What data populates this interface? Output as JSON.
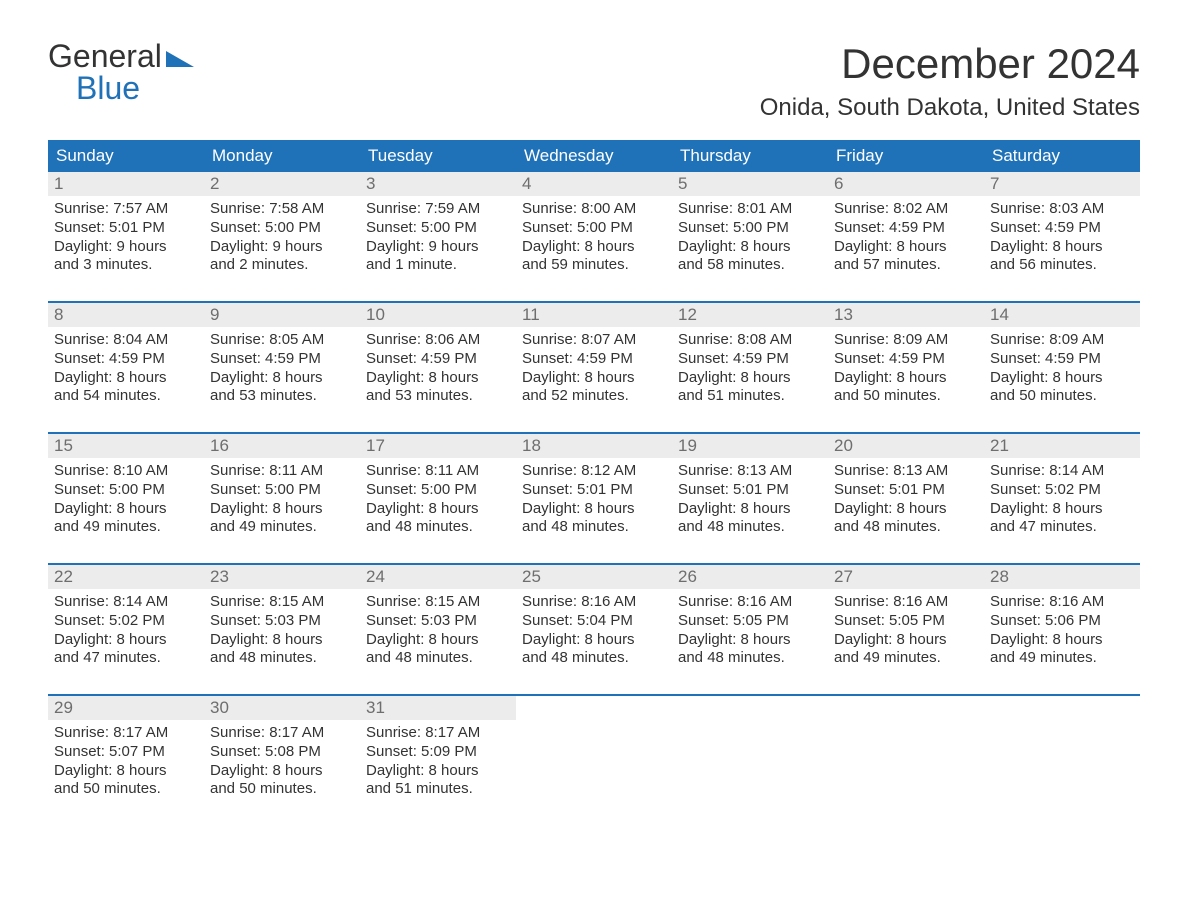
{
  "logo": {
    "text_general": "General",
    "text_blue": "Blue",
    "brand_color": "#2072b8"
  },
  "title": "December 2024",
  "location": "Onida, South Dakota, United States",
  "day_headers": [
    "Sunday",
    "Monday",
    "Tuesday",
    "Wednesday",
    "Thursday",
    "Friday",
    "Saturday"
  ],
  "colors": {
    "header_bg": "#2072b8",
    "header_text": "#ffffff",
    "daynum_bg": "#ececec",
    "daynum_text": "#6e6e6e",
    "body_text": "#333333",
    "week_border": "#2072b8",
    "page_bg": "#ffffff"
  },
  "typography": {
    "title_fontsize": 42,
    "location_fontsize": 24,
    "dayheader_fontsize": 17,
    "daynum_fontsize": 17,
    "body_fontsize": 15,
    "font_family": "Arial"
  },
  "weeks": [
    [
      {
        "num": "1",
        "sunrise": "Sunrise: 7:57 AM",
        "sunset": "Sunset: 5:01 PM",
        "daylight1": "Daylight: 9 hours",
        "daylight2": "and 3 minutes."
      },
      {
        "num": "2",
        "sunrise": "Sunrise: 7:58 AM",
        "sunset": "Sunset: 5:00 PM",
        "daylight1": "Daylight: 9 hours",
        "daylight2": "and 2 minutes."
      },
      {
        "num": "3",
        "sunrise": "Sunrise: 7:59 AM",
        "sunset": "Sunset: 5:00 PM",
        "daylight1": "Daylight: 9 hours",
        "daylight2": "and 1 minute."
      },
      {
        "num": "4",
        "sunrise": "Sunrise: 8:00 AM",
        "sunset": "Sunset: 5:00 PM",
        "daylight1": "Daylight: 8 hours",
        "daylight2": "and 59 minutes."
      },
      {
        "num": "5",
        "sunrise": "Sunrise: 8:01 AM",
        "sunset": "Sunset: 5:00 PM",
        "daylight1": "Daylight: 8 hours",
        "daylight2": "and 58 minutes."
      },
      {
        "num": "6",
        "sunrise": "Sunrise: 8:02 AM",
        "sunset": "Sunset: 4:59 PM",
        "daylight1": "Daylight: 8 hours",
        "daylight2": "and 57 minutes."
      },
      {
        "num": "7",
        "sunrise": "Sunrise: 8:03 AM",
        "sunset": "Sunset: 4:59 PM",
        "daylight1": "Daylight: 8 hours",
        "daylight2": "and 56 minutes."
      }
    ],
    [
      {
        "num": "8",
        "sunrise": "Sunrise: 8:04 AM",
        "sunset": "Sunset: 4:59 PM",
        "daylight1": "Daylight: 8 hours",
        "daylight2": "and 54 minutes."
      },
      {
        "num": "9",
        "sunrise": "Sunrise: 8:05 AM",
        "sunset": "Sunset: 4:59 PM",
        "daylight1": "Daylight: 8 hours",
        "daylight2": "and 53 minutes."
      },
      {
        "num": "10",
        "sunrise": "Sunrise: 8:06 AM",
        "sunset": "Sunset: 4:59 PM",
        "daylight1": "Daylight: 8 hours",
        "daylight2": "and 53 minutes."
      },
      {
        "num": "11",
        "sunrise": "Sunrise: 8:07 AM",
        "sunset": "Sunset: 4:59 PM",
        "daylight1": "Daylight: 8 hours",
        "daylight2": "and 52 minutes."
      },
      {
        "num": "12",
        "sunrise": "Sunrise: 8:08 AM",
        "sunset": "Sunset: 4:59 PM",
        "daylight1": "Daylight: 8 hours",
        "daylight2": "and 51 minutes."
      },
      {
        "num": "13",
        "sunrise": "Sunrise: 8:09 AM",
        "sunset": "Sunset: 4:59 PM",
        "daylight1": "Daylight: 8 hours",
        "daylight2": "and 50 minutes."
      },
      {
        "num": "14",
        "sunrise": "Sunrise: 8:09 AM",
        "sunset": "Sunset: 4:59 PM",
        "daylight1": "Daylight: 8 hours",
        "daylight2": "and 50 minutes."
      }
    ],
    [
      {
        "num": "15",
        "sunrise": "Sunrise: 8:10 AM",
        "sunset": "Sunset: 5:00 PM",
        "daylight1": "Daylight: 8 hours",
        "daylight2": "and 49 minutes."
      },
      {
        "num": "16",
        "sunrise": "Sunrise: 8:11 AM",
        "sunset": "Sunset: 5:00 PM",
        "daylight1": "Daylight: 8 hours",
        "daylight2": "and 49 minutes."
      },
      {
        "num": "17",
        "sunrise": "Sunrise: 8:11 AM",
        "sunset": "Sunset: 5:00 PM",
        "daylight1": "Daylight: 8 hours",
        "daylight2": "and 48 minutes."
      },
      {
        "num": "18",
        "sunrise": "Sunrise: 8:12 AM",
        "sunset": "Sunset: 5:01 PM",
        "daylight1": "Daylight: 8 hours",
        "daylight2": "and 48 minutes."
      },
      {
        "num": "19",
        "sunrise": "Sunrise: 8:13 AM",
        "sunset": "Sunset: 5:01 PM",
        "daylight1": "Daylight: 8 hours",
        "daylight2": "and 48 minutes."
      },
      {
        "num": "20",
        "sunrise": "Sunrise: 8:13 AM",
        "sunset": "Sunset: 5:01 PM",
        "daylight1": "Daylight: 8 hours",
        "daylight2": "and 48 minutes."
      },
      {
        "num": "21",
        "sunrise": "Sunrise: 8:14 AM",
        "sunset": "Sunset: 5:02 PM",
        "daylight1": "Daylight: 8 hours",
        "daylight2": "and 47 minutes."
      }
    ],
    [
      {
        "num": "22",
        "sunrise": "Sunrise: 8:14 AM",
        "sunset": "Sunset: 5:02 PM",
        "daylight1": "Daylight: 8 hours",
        "daylight2": "and 47 minutes."
      },
      {
        "num": "23",
        "sunrise": "Sunrise: 8:15 AM",
        "sunset": "Sunset: 5:03 PM",
        "daylight1": "Daylight: 8 hours",
        "daylight2": "and 48 minutes."
      },
      {
        "num": "24",
        "sunrise": "Sunrise: 8:15 AM",
        "sunset": "Sunset: 5:03 PM",
        "daylight1": "Daylight: 8 hours",
        "daylight2": "and 48 minutes."
      },
      {
        "num": "25",
        "sunrise": "Sunrise: 8:16 AM",
        "sunset": "Sunset: 5:04 PM",
        "daylight1": "Daylight: 8 hours",
        "daylight2": "and 48 minutes."
      },
      {
        "num": "26",
        "sunrise": "Sunrise: 8:16 AM",
        "sunset": "Sunset: 5:05 PM",
        "daylight1": "Daylight: 8 hours",
        "daylight2": "and 48 minutes."
      },
      {
        "num": "27",
        "sunrise": "Sunrise: 8:16 AM",
        "sunset": "Sunset: 5:05 PM",
        "daylight1": "Daylight: 8 hours",
        "daylight2": "and 49 minutes."
      },
      {
        "num": "28",
        "sunrise": "Sunrise: 8:16 AM",
        "sunset": "Sunset: 5:06 PM",
        "daylight1": "Daylight: 8 hours",
        "daylight2": "and 49 minutes."
      }
    ],
    [
      {
        "num": "29",
        "sunrise": "Sunrise: 8:17 AM",
        "sunset": "Sunset: 5:07 PM",
        "daylight1": "Daylight: 8 hours",
        "daylight2": "and 50 minutes."
      },
      {
        "num": "30",
        "sunrise": "Sunrise: 8:17 AM",
        "sunset": "Sunset: 5:08 PM",
        "daylight1": "Daylight: 8 hours",
        "daylight2": "and 50 minutes."
      },
      {
        "num": "31",
        "sunrise": "Sunrise: 8:17 AM",
        "sunset": "Sunset: 5:09 PM",
        "daylight1": "Daylight: 8 hours",
        "daylight2": "and 51 minutes."
      },
      {
        "empty": true
      },
      {
        "empty": true
      },
      {
        "empty": true
      },
      {
        "empty": true
      }
    ]
  ]
}
